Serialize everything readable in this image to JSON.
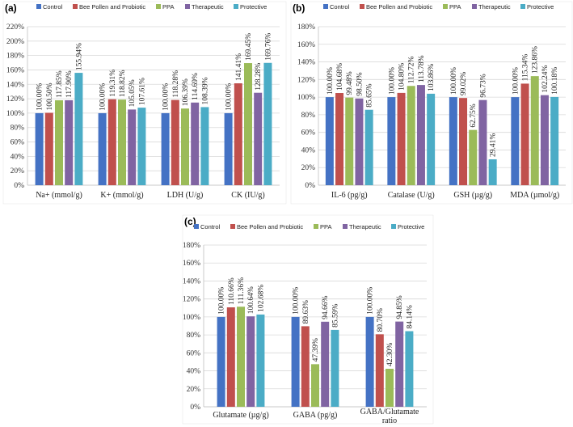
{
  "series_names": [
    "Control",
    "Bee Pollen and Probiotic",
    "PPA",
    "Therapeutic",
    "Protective"
  ],
  "series_colors": [
    "#4472C4",
    "#C0504D",
    "#9BBB59",
    "#8064A2",
    "#4BACC6"
  ],
  "chart_data": [
    {
      "type": "bar",
      "panel_label": "(a)",
      "categories": [
        "Na+ (mmol/g)",
        "K+ (mmol/g)",
        "LDH (U/g)",
        "CK (IU/g)"
      ],
      "series": [
        {
          "name": "Control",
          "values": [
            100.0,
            100.0,
            100.0,
            100.0
          ]
        },
        {
          "name": "Bee Pollen and Probiotic",
          "values": [
            100.5,
            119.31,
            118.28,
            141.41
          ]
        },
        {
          "name": "PPA",
          "values": [
            117.85,
            118.82,
            106.39,
            169.45
          ]
        },
        {
          "name": "Therapeutic",
          "values": [
            117.9,
            105.05,
            114.69,
            128.28
          ]
        },
        {
          "name": "Protective",
          "values": [
            155.94,
            107.61,
            108.39,
            169.76
          ]
        }
      ],
      "labels": [
        [
          "100.00%",
          "100.50%",
          "117.85%",
          "117.90%",
          "155.94%"
        ],
        [
          "100.00%",
          "119.31%",
          "118.82%",
          "105.05%",
          "107.61%"
        ],
        [
          "100.00%",
          "118.28%",
          "106.39%",
          "114.69%",
          "108.39%"
        ],
        [
          "100.00%",
          "141.41%",
          "169.45%",
          "128.28%",
          "169.76%"
        ]
      ],
      "yticks": [
        0,
        20,
        40,
        60,
        80,
        100,
        120,
        140,
        160,
        180,
        200,
        220
      ],
      "ytick_labels": [
        "0%",
        "20%",
        "40%",
        "60%",
        "80%",
        "100%",
        "120%",
        "140%",
        "160%",
        "180%",
        "200%",
        "220%"
      ],
      "ylim": [
        0,
        220
      ]
    },
    {
      "type": "bar",
      "panel_label": "(b)",
      "categories": [
        "IL-6 (pg/g)",
        "Catalase (U/g)",
        "GSH (µg/g)",
        "MDA (µmol/g)"
      ],
      "series": [
        {
          "name": "Control",
          "values": [
            100.0,
            100.0,
            100.0,
            100.0
          ]
        },
        {
          "name": "Bee Pollen and Probiotic",
          "values": [
            104.68,
            104.8,
            99.02,
            115.34
          ]
        },
        {
          "name": "PPA",
          "values": [
            99.48,
            112.72,
            62.75,
            123.86
          ]
        },
        {
          "name": "Therapeutic",
          "values": [
            98.5,
            113.78,
            96.73,
            102.24
          ]
        },
        {
          "name": "Protective",
          "values": [
            85.65,
            103.86,
            29.41,
            100.18
          ]
        }
      ],
      "labels": [
        [
          "100.00%",
          "104.68%",
          "99.48%",
          "98.50%",
          "85.65%"
        ],
        [
          "100.00%",
          "104.80%",
          "112.72%",
          "113.78%",
          "103.86%"
        ],
        [
          "100.00%",
          "99.02%",
          "62.75%",
          "96.73%",
          "29.41%"
        ],
        [
          "100.00%",
          "115.34%",
          "123.86%",
          "102.24%",
          "100.18%"
        ]
      ],
      "yticks": [
        0,
        20,
        40,
        60,
        80,
        100,
        120,
        140,
        160,
        180
      ],
      "ytick_labels": [
        "0%",
        "20%",
        "40%",
        "60%",
        "80%",
        "100%",
        "120%",
        "140%",
        "160%",
        "180%"
      ],
      "ylim": [
        0,
        180
      ]
    },
    {
      "type": "bar",
      "panel_label": "(c)",
      "categories": [
        "Glutamate (µg/g)",
        "GABA (pg/g)",
        "GABA/Glutamate ratio"
      ],
      "series": [
        {
          "name": "Control",
          "values": [
            100.0,
            100.0,
            100.0
          ]
        },
        {
          "name": "Bee Pollen and Probiotic",
          "values": [
            110.66,
            89.63,
            80.7
          ]
        },
        {
          "name": "PPA",
          "values": [
            111.36,
            47.39,
            42.3
          ]
        },
        {
          "name": "Therapeutic",
          "values": [
            100.64,
            94.66,
            94.85
          ]
        },
        {
          "name": "Protective",
          "values": [
            102.68,
            85.59,
            84.14
          ]
        }
      ],
      "labels": [
        [
          "100.00%",
          "110.66%",
          "111.36%",
          "100.64%",
          "102.68%"
        ],
        [
          "100.00%",
          "89.63%",
          "47.39%",
          "94.66%",
          "85.59%"
        ],
        [
          "100.00%",
          "80.70%",
          "42.30%",
          "94.85%",
          "84.14%"
        ]
      ],
      "yticks": [
        0,
        20,
        40,
        60,
        80,
        100,
        120,
        140,
        160,
        180
      ],
      "ytick_labels": [
        "0%",
        "20%",
        "40%",
        "60%",
        "80%",
        "100%",
        "120%",
        "140%",
        "160%",
        "180%"
      ],
      "ylim": [
        0,
        180
      ]
    }
  ]
}
